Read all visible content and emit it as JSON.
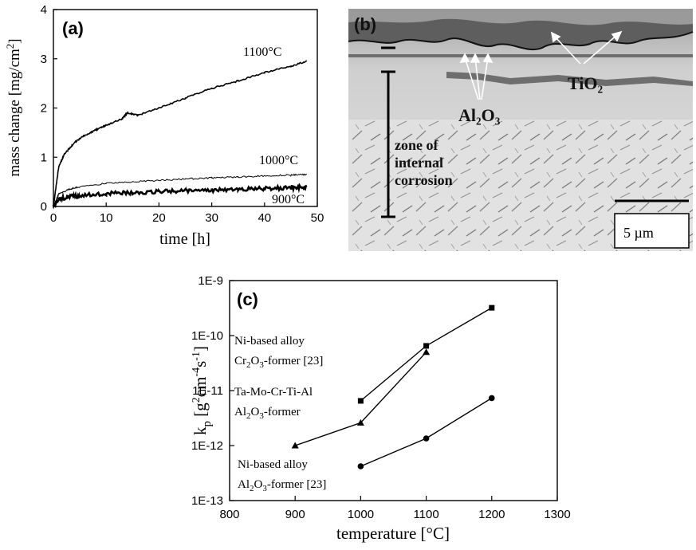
{
  "chart_data": [
    {
      "panel": "(a)",
      "type": "line",
      "xlabel": "time [h]",
      "ylabel": "mass change [mg/cm²]",
      "xlim": [
        0,
        50
      ],
      "ylim": [
        0,
        4
      ],
      "xticks": [
        "0",
        "10",
        "20",
        "30",
        "40",
        "50"
      ],
      "yticks": [
        "0",
        "1",
        "2",
        "3",
        "4"
      ],
      "series": [
        {
          "name": "1100°C",
          "x": [
            0,
            1,
            2,
            4,
            6,
            8,
            10,
            13,
            14,
            16,
            20,
            25,
            30,
            35,
            40,
            45,
            48
          ],
          "values": [
            0.0,
            0.8,
            1.05,
            1.3,
            1.45,
            1.55,
            1.65,
            1.78,
            1.9,
            1.85,
            2.0,
            2.2,
            2.4,
            2.55,
            2.72,
            2.85,
            2.95
          ]
        },
        {
          "name": "1000°C",
          "x": [
            0,
            1,
            3,
            5,
            10,
            15,
            20,
            25,
            30,
            35,
            40,
            45,
            48
          ],
          "values": [
            0.0,
            0.25,
            0.35,
            0.4,
            0.47,
            0.5,
            0.53,
            0.56,
            0.58,
            0.6,
            0.62,
            0.64,
            0.65
          ]
        },
        {
          "name": "900°C",
          "x": [
            0,
            1,
            3,
            5,
            10,
            15,
            20,
            25,
            30,
            35,
            40,
            45,
            48
          ],
          "values": [
            0.0,
            0.15,
            0.2,
            0.22,
            0.26,
            0.28,
            0.3,
            0.32,
            0.33,
            0.35,
            0.36,
            0.38,
            0.4
          ]
        }
      ]
    },
    {
      "panel": "(c)",
      "type": "line",
      "xlabel": "temperature [°C]",
      "ylabel": "kp [g²cm⁻⁴s⁻¹]",
      "xlim": [
        800,
        1300
      ],
      "ylim": [
        1e-13,
        1e-09
      ],
      "yscale": "log",
      "xticks": [
        "800",
        "900",
        "1000",
        "1100",
        "1200",
        "1300"
      ],
      "yticks": [
        "1E-13",
        "1E-12",
        "1E-11",
        "1E-10",
        "1E-9"
      ],
      "series": [
        {
          "name": "Ni-based alloy Cr2O3-former [23]",
          "marker": "square",
          "x": [
            1000,
            1100,
            1200
          ],
          "values": [
            6.5e-12,
            6.5e-11,
            3.2e-10
          ]
        },
        {
          "name": "Ta-Mo-Cr-Ti-Al Al2O3-former",
          "marker": "triangle",
          "x": [
            900,
            1000,
            1100
          ],
          "values": [
            1e-12,
            2.6e-12,
            5e-11
          ]
        },
        {
          "name": "Ni-based alloy Al2O3-former [23]",
          "marker": "circle",
          "x": [
            1000,
            1100,
            1200
          ],
          "values": [
            4.2e-13,
            1.35e-12,
            7.3e-12
          ]
        }
      ]
    }
  ],
  "panel_b": {
    "label": "(b)",
    "labels": {
      "tio2": "TiO₂",
      "al2o3": "Al₂O₃",
      "zone": [
        "zone of",
        "internal",
        "corrosion"
      ]
    },
    "scalebar": "5 µm"
  }
}
